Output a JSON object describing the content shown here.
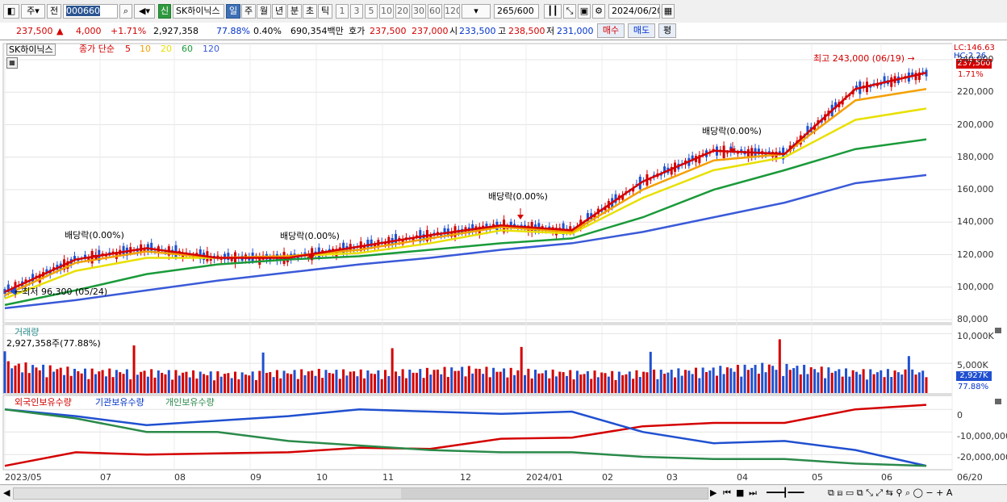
{
  "toolbar": {
    "period_options": "주",
    "prev_label": "전",
    "code": "000660",
    "stock_name": "SK하이닉스",
    "new_label": "신",
    "period_tabs": [
      "일",
      "주",
      "월",
      "년",
      "분",
      "초",
      "틱"
    ],
    "interval_tabs": [
      "1",
      "3",
      "5",
      "10",
      "20",
      "30",
      "60",
      "120"
    ],
    "count": "265",
    "count_max": "/600",
    "date": "2024/06/20"
  },
  "info": {
    "price": "237,500",
    "change": "4,000",
    "change_pct": "+1.71%",
    "volume": "2,927,358",
    "vol_ratio": "77.88%",
    "turnover": "0.40%",
    "amount": "690,354백만",
    "quote_label": "호가",
    "ask": "237,500",
    "bid": "237,000",
    "open_label": "시",
    "open": "233,500",
    "high_label": "고",
    "high": "238,500",
    "low_label": "저",
    "low": "231,000",
    "buy_label": "매수",
    "sell_label": "매도",
    "avg_label": "평"
  },
  "price_panel": {
    "stock_tag": "SK하이닉스",
    "legend_prefix": "종가 단순",
    "ma_labels": [
      "5",
      "10",
      "20",
      "60",
      "120"
    ],
    "ma_colors": [
      "#d40000",
      "#f4a000",
      "#e8e000",
      "#1a9a3a",
      "#3a5ad8"
    ],
    "lc": "LC:146.63",
    "hc": "HC:2.26",
    "price_tag": "237,500",
    "pct_tag": "1.71%",
    "high_note": "최고 243,000 (06/19) →",
    "low_note": "←최저 96,300 (05/24)",
    "dividend_notes": [
      "배당락(0.00%)",
      "배당락(0.00%)",
      "배당락(0.00%)",
      "배당락(0.00%)"
    ],
    "y_ticks": [
      "240,000",
      "220,000",
      "200,000",
      "180,000",
      "160,000",
      "140,000",
      "120,000",
      "100,000",
      "80,000"
    ]
  },
  "volume_panel": {
    "title": "거래량",
    "current": "2,927,358주(77.88%)",
    "y_ticks": [
      "10,000K",
      "5,000K"
    ],
    "vol_tag": "2,927K",
    "pct_tag": "77.88%"
  },
  "holdings_panel": {
    "legend": [
      "외국인보유수량",
      "기관보유수량",
      "개인보유수량"
    ],
    "colors": [
      "#d40000",
      "#2050d0",
      "#2a8a4a"
    ],
    "y_ticks": [
      "0",
      "-10,000,000",
      "-20,000,000"
    ]
  },
  "x_axis": [
    "2023/05",
    "07",
    "08",
    "09",
    "10",
    "11",
    "12",
    "2024/01",
    "02",
    "03",
    "04",
    "05",
    "06",
    "06/20"
  ],
  "chart_data": [
    {
      "type": "line",
      "title": "SK하이닉스",
      "x": [
        "2023/05",
        "2023/07",
        "2023/08",
        "2023/09",
        "2023/10",
        "2023/11",
        "2023/12",
        "2024/01",
        "2024/02",
        "2024/03",
        "2024/04",
        "2024/05",
        "2024/06",
        "2024/06/20"
      ],
      "series": [
        {
          "name": "5",
          "values": [
            97000,
            117000,
            124000,
            118000,
            118000,
            125000,
            132000,
            138000,
            135000,
            165000,
            184000,
            182000,
            222000,
            232000
          ]
        },
        {
          "name": "10",
          "values": [
            95000,
            115000,
            122000,
            118000,
            119000,
            123000,
            130000,
            137000,
            134000,
            160000,
            178000,
            182000,
            215000,
            222000
          ]
        },
        {
          "name": "20",
          "values": [
            93000,
            110000,
            118000,
            118000,
            119000,
            121000,
            127000,
            135000,
            133000,
            155000,
            172000,
            180000,
            203000,
            210000
          ]
        },
        {
          "name": "60",
          "values": [
            89000,
            98000,
            108000,
            114000,
            117000,
            119000,
            123000,
            127000,
            130000,
            143000,
            160000,
            172000,
            185000,
            191000
          ]
        },
        {
          "name": "120",
          "values": [
            87000,
            92000,
            98000,
            104000,
            109000,
            114000,
            118000,
            123000,
            127000,
            134000,
            143000,
            152000,
            164000,
            169000
          ]
        }
      ],
      "ylim": [
        80000,
        245000
      ]
    },
    {
      "type": "bar",
      "title": "거래량",
      "categories": [
        "2023/05",
        "2023/07",
        "2023/08",
        "2023/09",
        "2023/10",
        "2023/11",
        "2023/12",
        "2024/01",
        "2024/02",
        "2024/03",
        "2024/04",
        "2024/05",
        "2024/06"
      ],
      "values": [
        5500000,
        4200000,
        4000000,
        3600000,
        4100000,
        3900000,
        4600000,
        4000000,
        3700000,
        4300000,
        5200000,
        4100000,
        4000000
      ],
      "ylim": [
        0,
        11000000
      ]
    },
    {
      "type": "line",
      "title": "",
      "x": [
        "2023/05",
        "2023/07",
        "2023/08",
        "2023/09",
        "2023/10",
        "2023/11",
        "2023/12",
        "2024/01",
        "2024/02",
        "2024/03",
        "2024/04",
        "2024/05",
        "2024/06",
        "2024/06/20"
      ],
      "series": [
        {
          "name": "외국인보유수량",
          "values": [
            -25000000,
            -19000000,
            -20000000,
            -19500000,
            -19000000,
            -17000000,
            -17500000,
            -13000000,
            -12500000,
            -7500000,
            -6000000,
            -6000000,
            0,
            2000000
          ]
        },
        {
          "name": "기관보유수량",
          "values": [
            0,
            -3000000,
            -7000000,
            -5000000,
            -3000000,
            0,
            -1000000,
            -2000000,
            -1000000,
            -10000000,
            -15000000,
            -14000000,
            -18000000,
            -25000000
          ]
        },
        {
          "name": "개인보유수량",
          "values": [
            0,
            -4000000,
            -10000000,
            -10000000,
            -14000000,
            -16000000,
            -18000000,
            -19000000,
            -19000000,
            -21000000,
            -22000000,
            -22000000,
            -24000000,
            -25000000
          ]
        }
      ],
      "ylim": [
        -26000000,
        4000000
      ]
    }
  ]
}
